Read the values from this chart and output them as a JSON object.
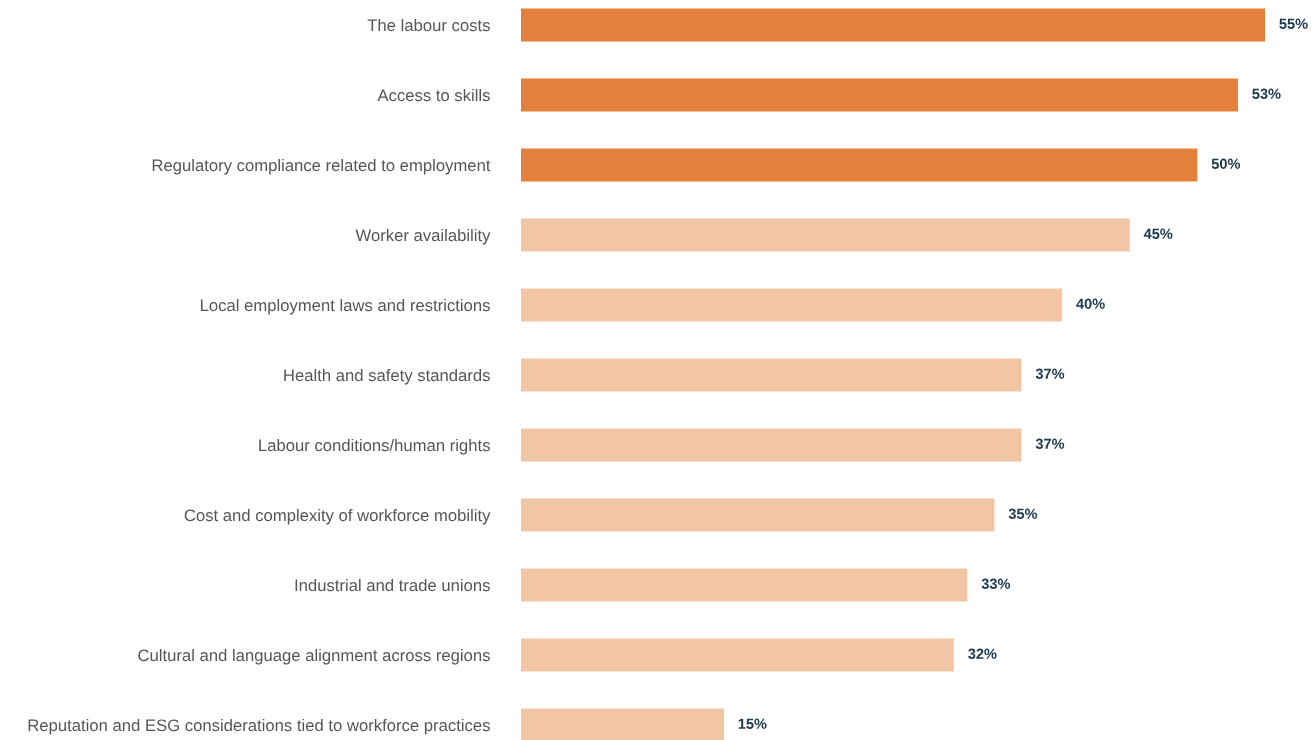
{
  "chart_data": {
    "type": "bar",
    "orientation": "horizontal",
    "categories": [
      "The labour costs",
      "Access to skills",
      "Regulatory compliance related to employment",
      "Worker availability",
      "Local employment laws and restrictions",
      "Health and safety standards",
      "Labour conditions/human rights",
      "Cost and complexity of workforce mobility",
      "Industrial and trade unions",
      "Cultural and language alignment across regions",
      "Reputation and ESG considerations tied to workforce practices"
    ],
    "values": [
      55,
      53,
      50,
      45,
      40,
      37,
      37,
      35,
      33,
      32,
      15
    ],
    "colors": [
      "#e3803b",
      "#e3803b",
      "#e3803b",
      "#f2c6a5",
      "#f2c6a5",
      "#f2c6a5",
      "#f2c6a5",
      "#f2c6a5",
      "#f2c6a5",
      "#f2c6a5",
      "#f2c6a5"
    ],
    "value_labels": [
      "55%",
      "53%",
      "50%",
      "45%",
      "40%",
      "37%",
      "37%",
      "35%",
      "33%",
      "32%",
      "15%"
    ],
    "xlim": [
      0,
      55
    ],
    "tick_labels": "y"
  }
}
